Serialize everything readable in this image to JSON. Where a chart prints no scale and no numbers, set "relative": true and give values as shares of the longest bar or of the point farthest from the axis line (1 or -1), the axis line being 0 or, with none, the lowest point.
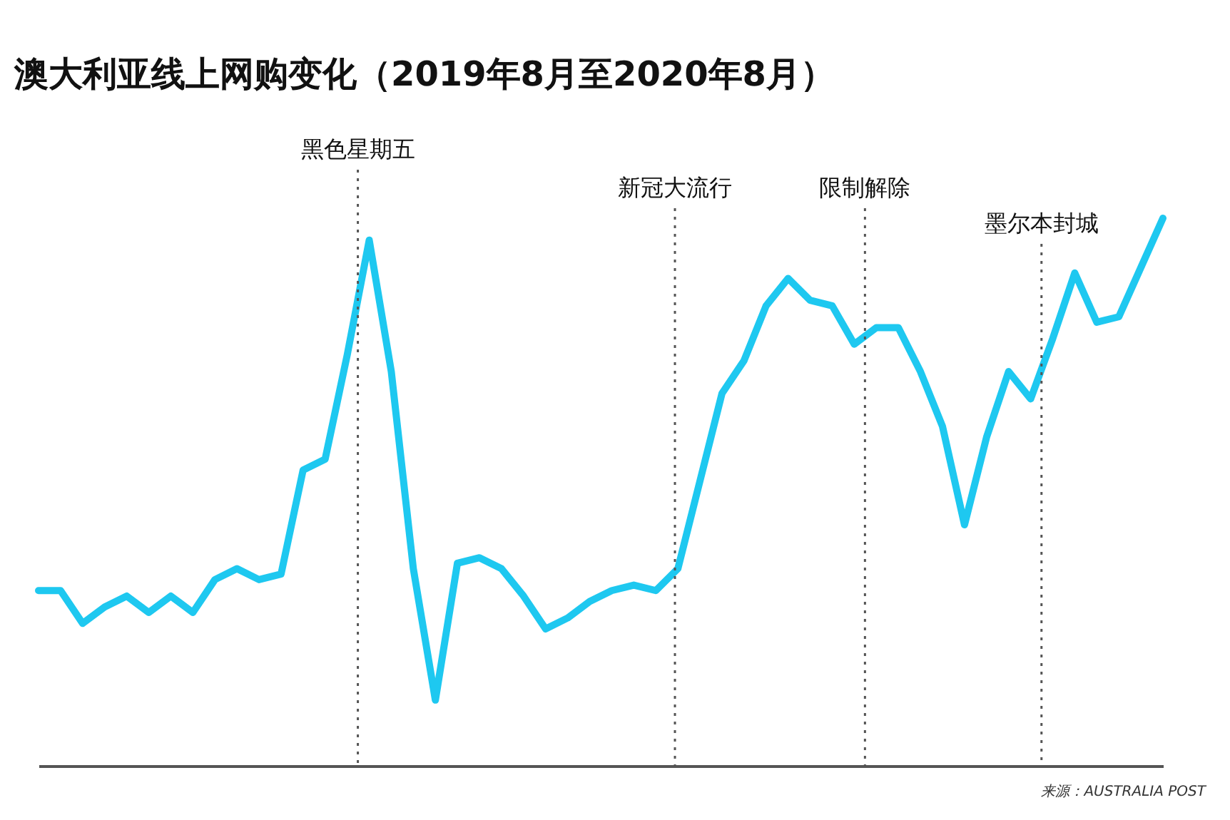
{
  "chart_data": {
    "type": "line",
    "title": "澳大利亚线上网购变化（2019年8月至2020年8月）",
    "relative": true,
    "categories": [
      null,
      null,
      null,
      null,
      null,
      null,
      null,
      null,
      null,
      null,
      null,
      null,
      null,
      null,
      null,
      null,
      null,
      null,
      null,
      null,
      null,
      null,
      null,
      null,
      null,
      null,
      null,
      null,
      null,
      null,
      null,
      null,
      null,
      null,
      null,
      null,
      null,
      null,
      null,
      null,
      null,
      null,
      null,
      null,
      null,
      null,
      null,
      null,
      null,
      null,
      null,
      null
    ],
    "series": [
      {
        "color": "#1ec8f0",
        "values": [
          0.32,
          0.32,
          0.26,
          0.29,
          0.31,
          0.28,
          0.31,
          0.28,
          0.34,
          0.36,
          0.34,
          0.35,
          0.54,
          0.56,
          0.75,
          0.96,
          0.72,
          0.36,
          0.12,
          0.37,
          0.38,
          0.36,
          0.31,
          0.25,
          0.27,
          0.3,
          0.32,
          0.33,
          0.32,
          0.36,
          0.52,
          0.68,
          0.74,
          0.84,
          0.89,
          0.85,
          0.84,
          0.77,
          0.8,
          0.8,
          0.72,
          0.62,
          0.44,
          0.6,
          0.72,
          0.67,
          0.78,
          0.9,
          0.81,
          0.82,
          0.91,
          1
        ]
      }
    ],
    "annotations": [
      "黑色星期五",
      "新冠大流行",
      "限制解除",
      "墨尔本封城",
      "来源：AUSTRALIA POST"
    ],
    "line_style": "solid",
    "marker": "none",
    "grid": false,
    "tick_labels": false
  }
}
